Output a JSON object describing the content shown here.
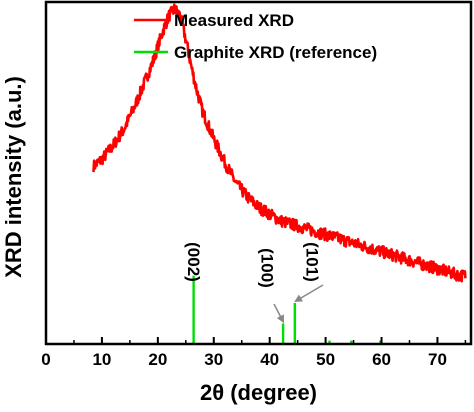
{
  "chart_data": {
    "type": "line",
    "xlabel": "2θ (degree)",
    "ylabel": "XRD intensity (a.u.)",
    "xlim": [
      0,
      76
    ],
    "x_ticks": [
      "0",
      "10",
      "20",
      "30",
      "40",
      "50",
      "60",
      "70"
    ],
    "y_ticks": [],
    "grid": false,
    "legend_position": "top-right",
    "legend": [
      {
        "label": "Measured XRD",
        "color": "#ff0000"
      },
      {
        "label": "Graphite XRD (reference)",
        "color": "#00dd00"
      }
    ],
    "series": [
      {
        "name": "Measured XRD",
        "color": "#ff0000",
        "x": [
          8.5,
          10,
          12,
          14,
          16,
          18,
          19,
          20,
          21,
          22,
          23,
          24,
          25,
          26,
          27,
          28,
          30,
          32,
          34,
          36,
          38,
          40,
          42,
          44,
          46,
          48,
          50,
          52,
          54,
          56,
          58,
          60,
          62,
          64,
          66,
          68,
          70,
          72,
          74,
          75
        ],
        "y": [
          0.52,
          0.54,
          0.58,
          0.63,
          0.7,
          0.78,
          0.82,
          0.87,
          0.92,
          0.96,
          0.98,
          0.96,
          0.89,
          0.81,
          0.74,
          0.68,
          0.6,
          0.53,
          0.47,
          0.43,
          0.4,
          0.38,
          0.36,
          0.35,
          0.34,
          0.33,
          0.32,
          0.31,
          0.3,
          0.29,
          0.28,
          0.27,
          0.26,
          0.25,
          0.24,
          0.23,
          0.22,
          0.21,
          0.2,
          0.2
        ]
      },
      {
        "name": "Graphite XRD (reference)",
        "color": "#00dd00",
        "type": "stick",
        "x": [
          26.4,
          42.4,
          44.5,
          50.7,
          54.6,
          59.8
        ],
        "y": [
          0.2,
          0.06,
          0.12,
          0.01,
          0.01,
          0.01
        ]
      }
    ],
    "annotations": [
      {
        "text": "(002)",
        "x": 26.4
      },
      {
        "text": "(100)",
        "x": 42.4
      },
      {
        "text": "(101)",
        "x": 44.5
      }
    ]
  }
}
